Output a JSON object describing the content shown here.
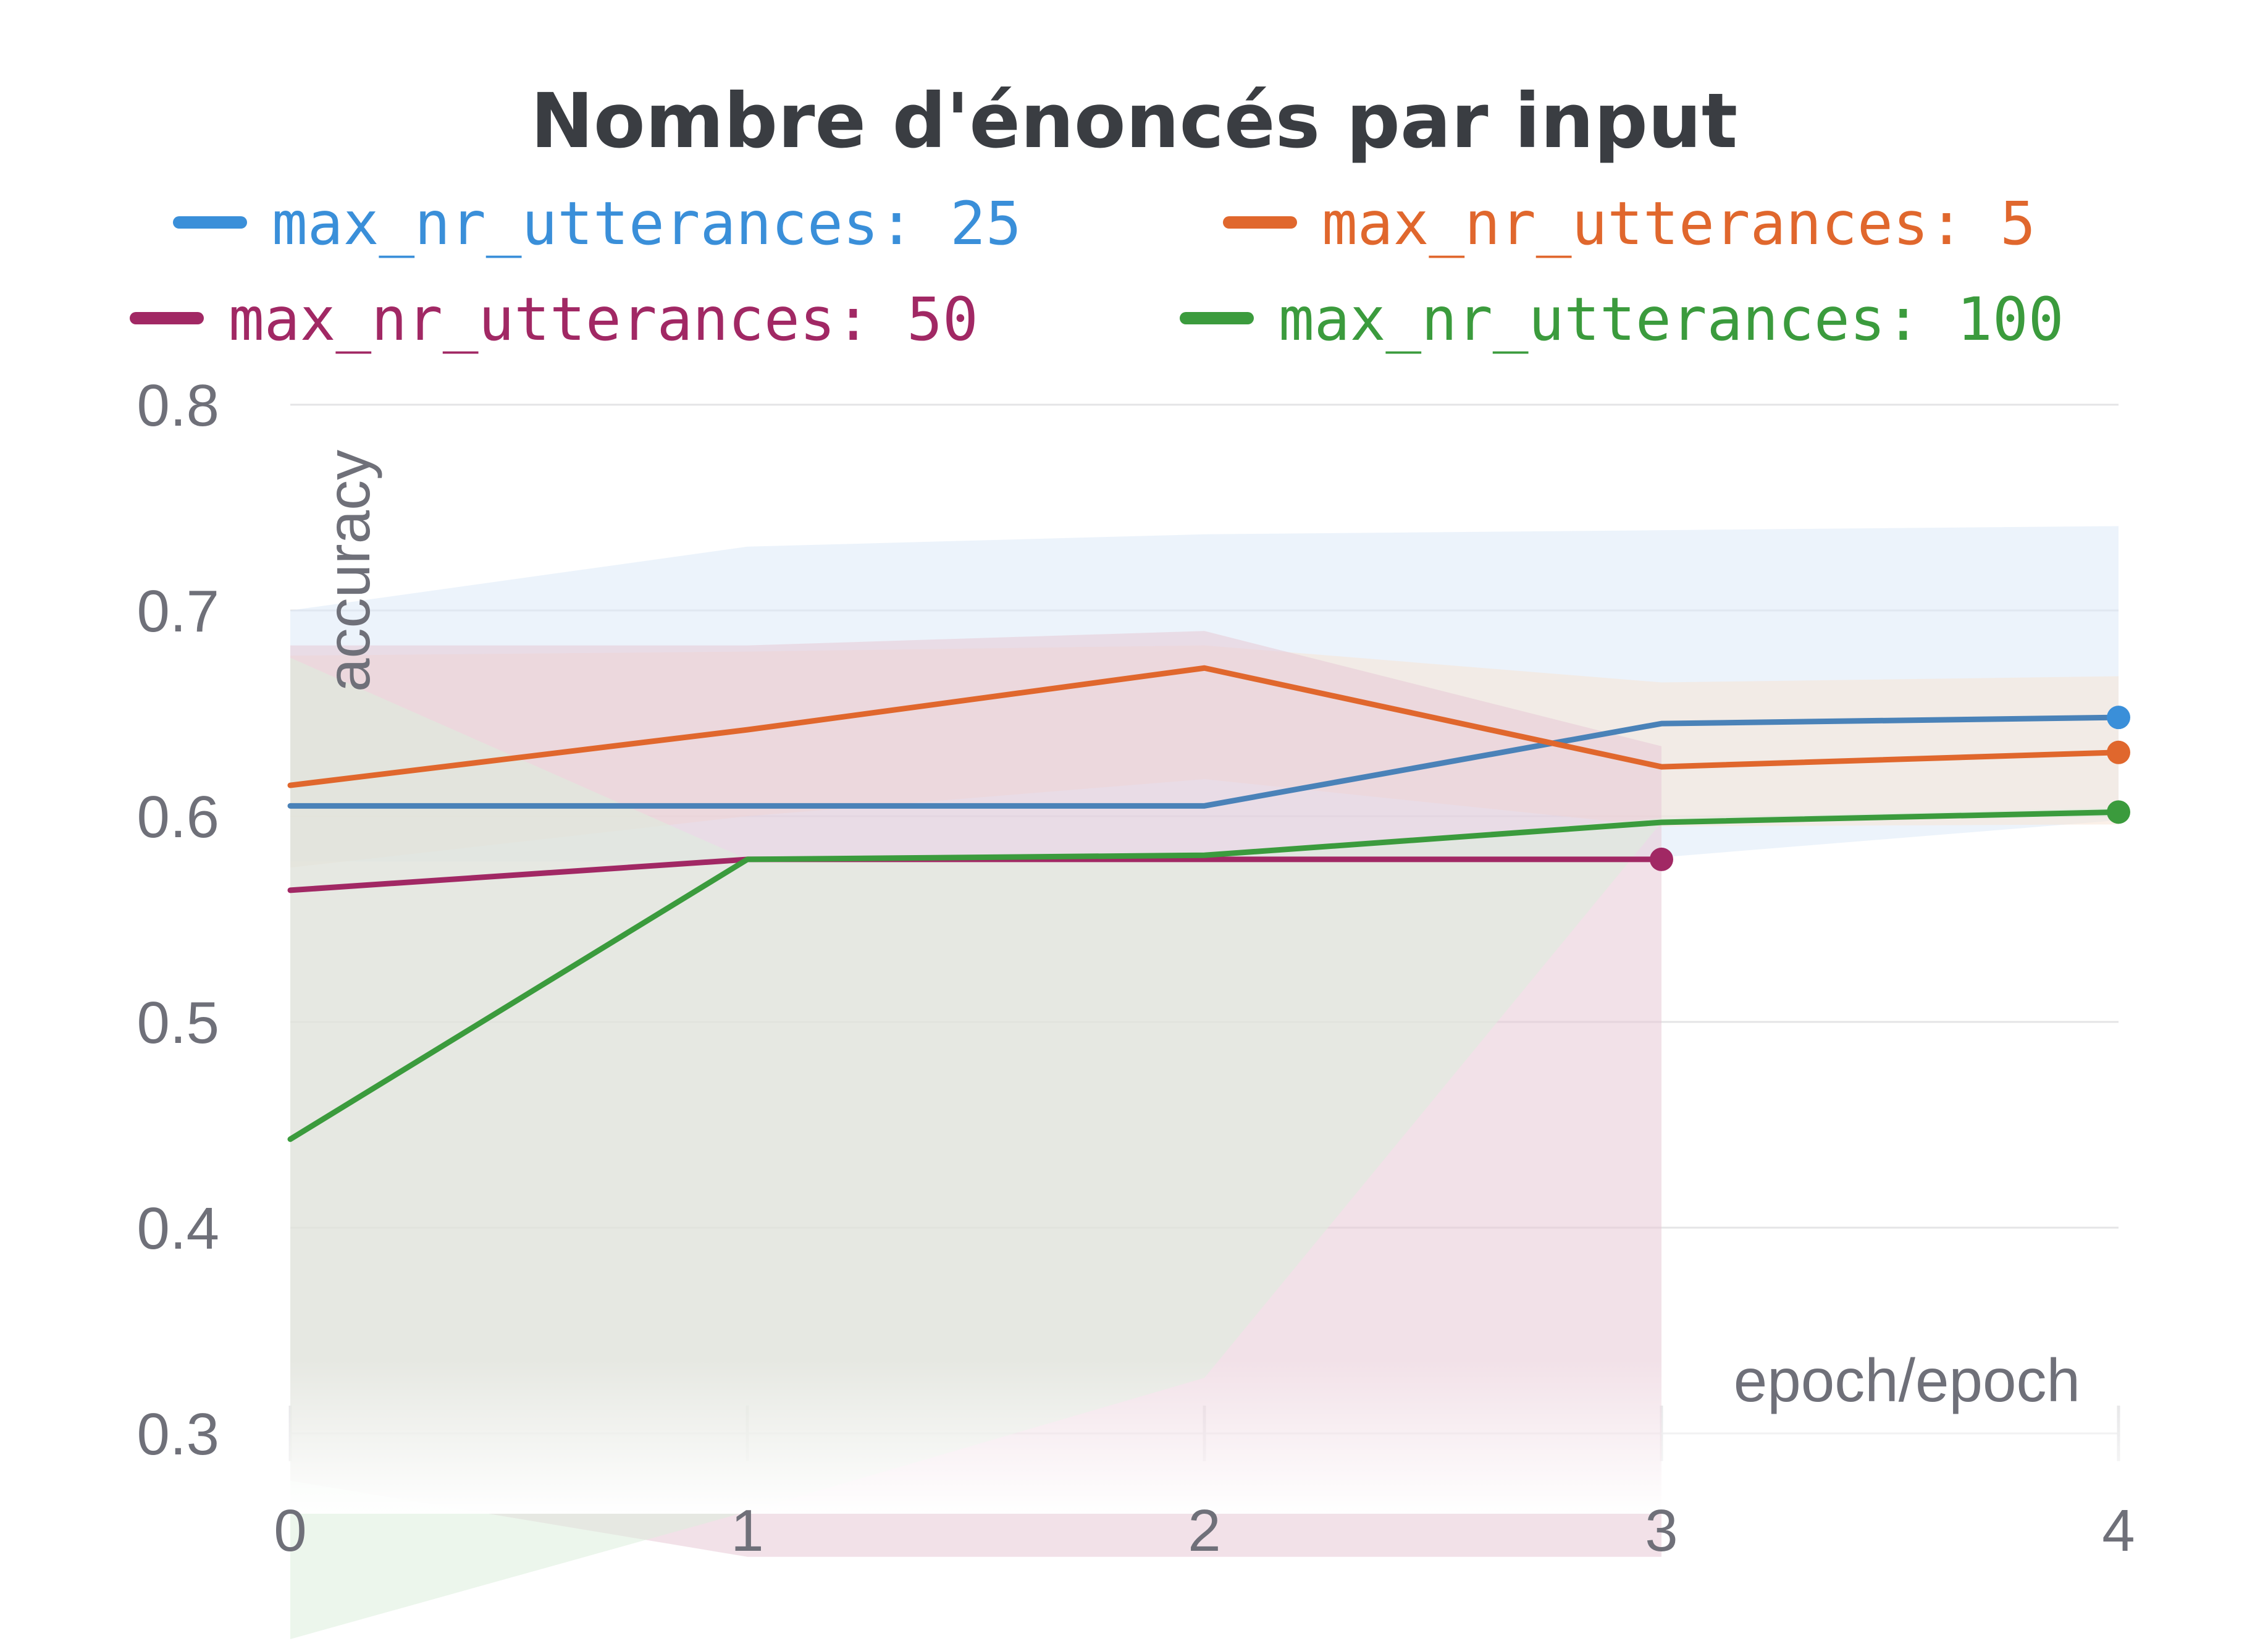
{
  "chart_data": {
    "type": "line",
    "title": "Nombre d'énoncés par input",
    "xlabel": "epoch/epoch",
    "ylabel": "accuracy",
    "x": [
      0,
      1,
      2,
      3,
      4
    ],
    "xlim": [
      0,
      4
    ],
    "ylim": [
      0.3,
      0.8
    ],
    "xticks": [
      "0",
      "1",
      "2",
      "3",
      "4"
    ],
    "yticks": [
      "0.3",
      "0.4",
      "0.5",
      "0.6",
      "0.7",
      "0.8"
    ],
    "grid": true,
    "legend_position": "top",
    "series": [
      {
        "name": "max_nr_utterances: 25",
        "color": "#3a8fd9",
        "line_color": "#4a82b8",
        "band_color": "#dce9f8",
        "x": [
          0,
          1,
          2,
          3,
          4
        ],
        "values": [
          0.605,
          0.605,
          0.605,
          0.645,
          0.648
        ],
        "band_upper": [
          0.7,
          0.731,
          0.737,
          0.739,
          0.741
        ],
        "band_lower": [
          0.578,
          0.578,
          0.578,
          0.58,
          0.598
        ]
      },
      {
        "name": "max_nr_utterances: 5",
        "color": "#e0672d",
        "line_color": "#e0672d",
        "band_color": "#f8e3d6",
        "x": [
          0,
          1,
          2,
          3,
          4
        ],
        "values": [
          0.615,
          0.642,
          0.672,
          0.624,
          0.631
        ],
        "band_upper": [
          0.678,
          0.68,
          0.683,
          0.665,
          0.668
        ],
        "band_lower": [
          0.575,
          0.6,
          0.618,
          0.595,
          0.596
        ]
      },
      {
        "name": "max_nr_utterances: 50",
        "color": "#a12864",
        "line_color": "#a12864",
        "band_color": "#e8c9d6",
        "x": [
          0,
          1,
          2,
          3
        ],
        "values": [
          0.564,
          0.579,
          0.579,
          0.579
        ],
        "band_upper": [
          0.683,
          0.683,
          0.69,
          0.634
        ],
        "band_lower": [
          0.277,
          0.24,
          0.24,
          0.24
        ]
      },
      {
        "name": "max_nr_utterances: 100",
        "color": "#3b9b3d",
        "line_color": "#3b9b3d",
        "band_color": "#ddeedd",
        "x": [
          0,
          1,
          2,
          3,
          4
        ],
        "values": [
          0.443,
          0.579,
          0.581,
          0.597,
          0.602
        ],
        "band_upper": [
          0.677,
          0.579,
          0.581,
          0.599,
          0.604
        ],
        "band_lower": [
          0.2,
          0.262,
          0.327,
          0.597,
          0.6
        ]
      }
    ]
  }
}
